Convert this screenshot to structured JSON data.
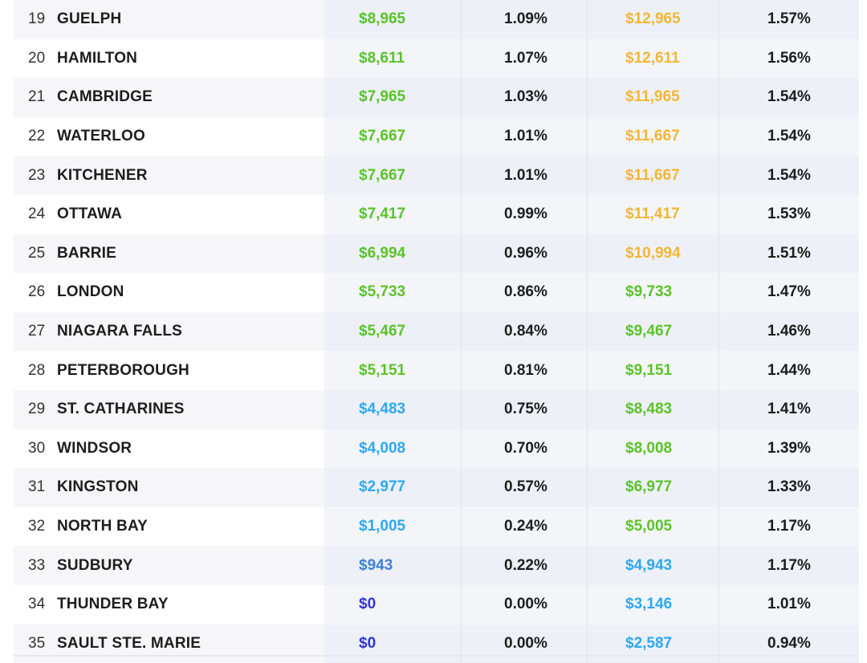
{
  "rows": [
    {
      "rank": "19",
      "city": "GUELPH",
      "v1": "$8,965",
      "p1": "1.09%",
      "v2": "$12,965",
      "p2": "1.57%",
      "c1": "green",
      "c2": "orange"
    },
    {
      "rank": "20",
      "city": "HAMILTON",
      "v1": "$8,611",
      "p1": "1.07%",
      "v2": "$12,611",
      "p2": "1.56%",
      "c1": "green",
      "c2": "orange"
    },
    {
      "rank": "21",
      "city": "CAMBRIDGE",
      "v1": "$7,965",
      "p1": "1.03%",
      "v2": "$11,965",
      "p2": "1.54%",
      "c1": "green",
      "c2": "orange"
    },
    {
      "rank": "22",
      "city": "WATERLOO",
      "v1": "$7,667",
      "p1": "1.01%",
      "v2": "$11,667",
      "p2": "1.54%",
      "c1": "green",
      "c2": "orange"
    },
    {
      "rank": "23",
      "city": "KITCHENER",
      "v1": "$7,667",
      "p1": "1.01%",
      "v2": "$11,667",
      "p2": "1.54%",
      "c1": "green",
      "c2": "orange"
    },
    {
      "rank": "24",
      "city": "OTTAWA",
      "v1": "$7,417",
      "p1": "0.99%",
      "v2": "$11,417",
      "p2": "1.53%",
      "c1": "green",
      "c2": "orange"
    },
    {
      "rank": "25",
      "city": "BARRIE",
      "v1": "$6,994",
      "p1": "0.96%",
      "v2": "$10,994",
      "p2": "1.51%",
      "c1": "green",
      "c2": "orange"
    },
    {
      "rank": "26",
      "city": "LONDON",
      "v1": "$5,733",
      "p1": "0.86%",
      "v2": "$9,733",
      "p2": "1.47%",
      "c1": "green",
      "c2": "green"
    },
    {
      "rank": "27",
      "city": "NIAGARA FALLS",
      "v1": "$5,467",
      "p1": "0.84%",
      "v2": "$9,467",
      "p2": "1.46%",
      "c1": "green",
      "c2": "green"
    },
    {
      "rank": "28",
      "city": "PETERBOROUGH",
      "v1": "$5,151",
      "p1": "0.81%",
      "v2": "$9,151",
      "p2": "1.44%",
      "c1": "green",
      "c2": "green"
    },
    {
      "rank": "29",
      "city": "ST. CATHARINES",
      "v1": "$4,483",
      "p1": "0.75%",
      "v2": "$8,483",
      "p2": "1.41%",
      "c1": "lightblue",
      "c2": "green"
    },
    {
      "rank": "30",
      "city": "WINDSOR",
      "v1": "$4,008",
      "p1": "0.70%",
      "v2": "$8,008",
      "p2": "1.39%",
      "c1": "lightblue",
      "c2": "green"
    },
    {
      "rank": "31",
      "city": "KINGSTON",
      "v1": "$2,977",
      "p1": "0.57%",
      "v2": "$6,977",
      "p2": "1.33%",
      "c1": "lightblue",
      "c2": "green"
    },
    {
      "rank": "32",
      "city": "NORTH BAY",
      "v1": "$1,005",
      "p1": "0.24%",
      "v2": "$5,005",
      "p2": "1.17%",
      "c1": "lightblue",
      "c2": "green"
    },
    {
      "rank": "33",
      "city": "SUDBURY",
      "v1": "$943",
      "p1": "0.22%",
      "v2": "$4,943",
      "p2": "1.17%",
      "c1": "steel",
      "c2": "lightblue"
    },
    {
      "rank": "34",
      "city": "THUNDER BAY",
      "v1": "$0",
      "p1": "0.00%",
      "v2": "$3,146",
      "p2": "1.01%",
      "c1": "indigo",
      "c2": "lightblue"
    },
    {
      "rank": "35",
      "city": "SAULT STE. MARIE",
      "v1": "$0",
      "p1": "0.00%",
      "v2": "$2,587",
      "p2": "0.94%",
      "c1": "indigo",
      "c2": "lightblue"
    }
  ]
}
